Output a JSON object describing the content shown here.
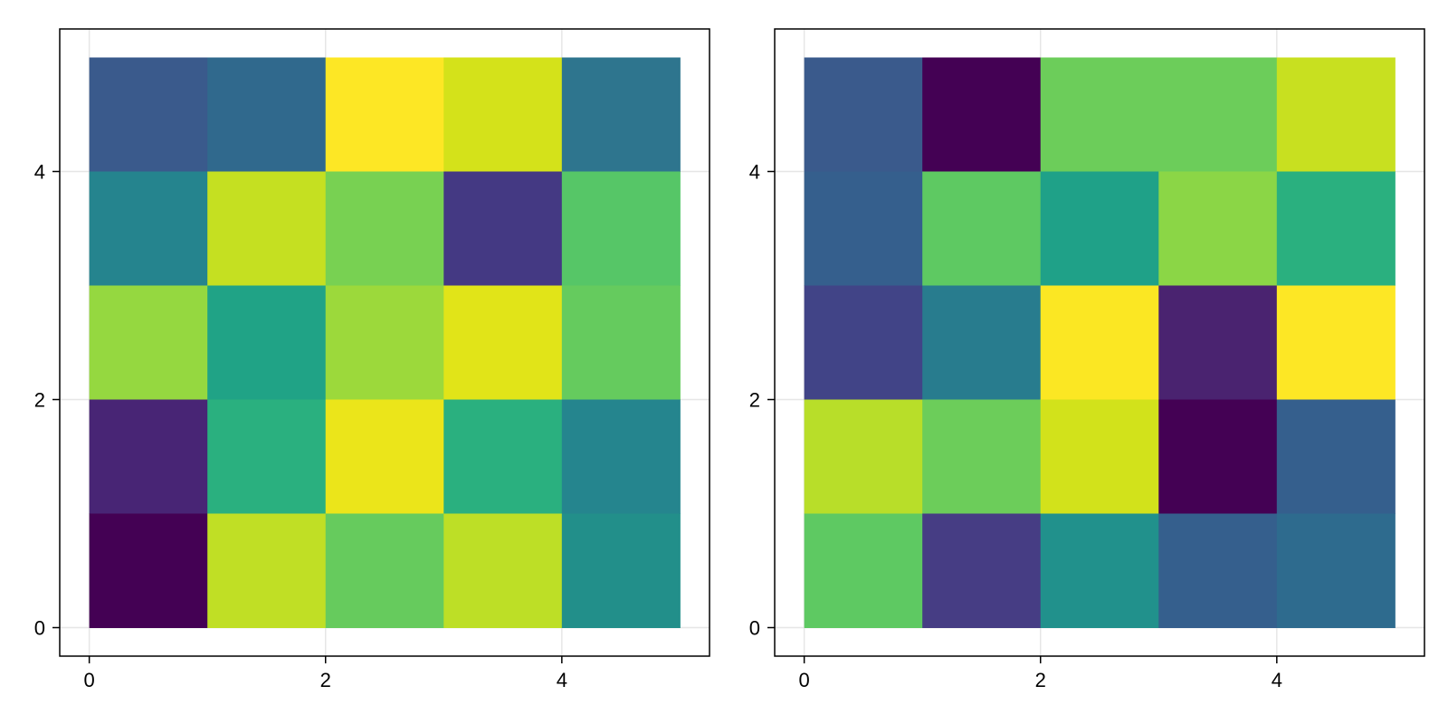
{
  "chart_data": [
    {
      "type": "heatmap",
      "title": "",
      "xlabel": "",
      "ylabel": "",
      "colormap": "viridis",
      "x_edges": [
        0,
        1,
        2,
        3,
        4,
        5
      ],
      "y_edges": [
        0,
        1,
        2,
        3,
        4,
        5
      ],
      "xlim": [
        -0.25,
        5.25
      ],
      "ylim": [
        -0.25,
        5.25
      ],
      "x_ticks": [
        0,
        2,
        4
      ],
      "y_ticks": [
        0,
        2,
        4
      ],
      "x_tick_labels": [
        "0",
        "2",
        "4"
      ],
      "y_tick_labels": [
        "0",
        "2",
        "4"
      ],
      "grid": true,
      "rows_top_to_bottom": [
        [
          "#3a5a8c",
          "#30698d",
          "#fde725",
          "#d4e21a",
          "#2e758e"
        ],
        [
          "#25848e",
          "#c5e021",
          "#78d152",
          "#443983",
          "#56c667"
        ],
        [
          "#95d840",
          "#20a386",
          "#9cd93b",
          "#e1e418",
          "#65cb5e"
        ],
        [
          "#482575",
          "#2ab07f",
          "#ebe51a",
          "#2ab07f",
          "#25858e"
        ],
        [
          "#440154",
          "#c0df25",
          "#66cb5d",
          "#bddf26",
          "#228f8a"
        ]
      ]
    },
    {
      "type": "heatmap",
      "title": "",
      "xlabel": "",
      "ylabel": "",
      "colormap": "viridis",
      "x_edges": [
        0,
        1,
        2,
        3,
        4,
        5
      ],
      "y_edges": [
        0,
        1,
        2,
        3,
        4,
        5
      ],
      "xlim": [
        -0.25,
        5.25
      ],
      "ylim": [
        -0.25,
        5.25
      ],
      "x_ticks": [
        0,
        2,
        4
      ],
      "y_ticks": [
        0,
        2,
        4
      ],
      "x_tick_labels": [
        "0",
        "2",
        "4"
      ],
      "y_tick_labels": [
        "0",
        "2",
        "4"
      ],
      "grid": true,
      "rows_top_to_bottom": [
        [
          "#3a5a8c",
          "#440154",
          "#6ccd5a",
          "#6ccd5a",
          "#c8e020"
        ],
        [
          "#355f8d",
          "#5ec962",
          "#1fa188",
          "#8bd646",
          "#2ab07f"
        ],
        [
          "#414487",
          "#287c8e",
          "#fbe723",
          "#4a2370",
          "#fde725"
        ],
        [
          "#b8de29",
          "#6ccd5a",
          "#d2e21b",
          "#440154",
          "#355f8d"
        ],
        [
          "#5ec962",
          "#463d84",
          "#21918c",
          "#355f8d",
          "#2e6b8e"
        ]
      ]
    }
  ]
}
